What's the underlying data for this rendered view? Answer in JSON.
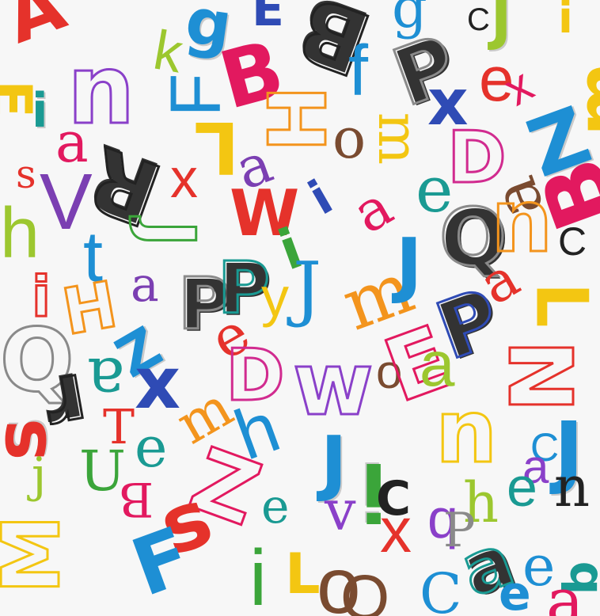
{
  "pattern": {
    "name": "hand-drawn alphabet letters pattern",
    "colors": {
      "red": "#e5322b",
      "pink": "#e2195f",
      "magenta": "#d12b8f",
      "purple": "#7b3fb2",
      "violet": "#8a40c9",
      "blue": "#2f4bb5",
      "sky": "#1e8fd4",
      "teal": "#1a9a93",
      "green": "#3ba53a",
      "lime": "#9cc72f",
      "yellow": "#f3c612",
      "orange": "#f3941d",
      "brown": "#7a4b30",
      "black": "#222222",
      "gray": "#8a8a8a"
    },
    "letters": [
      {
        "text": "A",
        "color": "#e5322b"
      },
      {
        "text": "g",
        "color": "#1e8fd4"
      },
      {
        "text": "E",
        "color": "#2f4bb5"
      },
      {
        "text": "B",
        "color": "#222222"
      },
      {
        "text": "g",
        "color": "#1e8fd4"
      },
      {
        "text": "C",
        "color": "#222222"
      },
      {
        "text": "J",
        "color": "#9cc72f"
      },
      {
        "text": "i",
        "color": "#f3c612"
      },
      {
        "text": "E",
        "color": "#f3c612"
      },
      {
        "text": "i",
        "color": "#1a9a93"
      },
      {
        "text": "n",
        "color": "#8a40c9"
      },
      {
        "text": "k",
        "color": "#9cc72f"
      },
      {
        "text": "B",
        "color": "#e2195f"
      },
      {
        "text": "f",
        "color": "#1e8fd4"
      },
      {
        "text": "P",
        "color": "#8a8a8a"
      },
      {
        "text": "e",
        "color": "#e5322b"
      },
      {
        "text": "m",
        "color": "#f3c612"
      },
      {
        "text": "F",
        "color": "#1e8fd4"
      },
      {
        "text": "H",
        "color": "#f3941d"
      },
      {
        "text": "x",
        "color": "#2f4bb5"
      },
      {
        "text": "x",
        "color": "#e2195f"
      },
      {
        "text": "Z",
        "color": "#1e8fd4"
      },
      {
        "text": "a",
        "color": "#e2195f"
      },
      {
        "text": "L",
        "color": "#f3c612"
      },
      {
        "text": "o",
        "color": "#7a4b30"
      },
      {
        "text": "m",
        "color": "#f3c612"
      },
      {
        "text": "D",
        "color": "#d12b8f"
      },
      {
        "text": "s",
        "color": "#e5322b"
      },
      {
        "text": "V",
        "color": "#7b3fb2"
      },
      {
        "text": "R",
        "color": "#222222"
      },
      {
        "text": "a",
        "color": "#7b3fb2"
      },
      {
        "text": "e",
        "color": "#1a9a93"
      },
      {
        "text": "a",
        "color": "#7a4b30"
      },
      {
        "text": "B",
        "color": "#e2195f"
      },
      {
        "text": "h",
        "color": "#9cc72f"
      },
      {
        "text": "t",
        "color": "#1e8fd4"
      },
      {
        "text": "x",
        "color": "#e5322b"
      },
      {
        "text": "J",
        "color": "#3ba53a"
      },
      {
        "text": "W",
        "color": "#e5322b"
      },
      {
        "text": "i",
        "color": "#2f4bb5"
      },
      {
        "text": "i",
        "color": "#3ba53a"
      },
      {
        "text": "a",
        "color": "#e2195f"
      },
      {
        "text": "Q",
        "color": "#8a8a8a"
      },
      {
        "text": "u",
        "color": "#f3941d"
      },
      {
        "text": "C",
        "color": "#222222"
      },
      {
        "text": "i",
        "color": "#e5322b"
      },
      {
        "text": "H",
        "color": "#f3941d"
      },
      {
        "text": "a",
        "color": "#7b3fb2"
      },
      {
        "text": "P",
        "color": "#8a8a8a"
      },
      {
        "text": "P",
        "color": "#1a9a93"
      },
      {
        "text": "y",
        "color": "#f3c612"
      },
      {
        "text": "J",
        "color": "#1e8fd4"
      },
      {
        "text": "m",
        "color": "#f3941d"
      },
      {
        "text": "J",
        "color": "#1e8fd4"
      },
      {
        "text": "P",
        "color": "#2f4bb5"
      },
      {
        "text": "a",
        "color": "#e5322b"
      },
      {
        "text": "L",
        "color": "#f3c612"
      },
      {
        "text": "Q",
        "color": "#8a8a8a"
      },
      {
        "text": "Z",
        "color": "#1e8fd4"
      },
      {
        "text": "e",
        "color": "#e5322b"
      },
      {
        "text": "D",
        "color": "#d12b8f"
      },
      {
        "text": "w",
        "color": "#8a40c9"
      },
      {
        "text": "o",
        "color": "#7a4b30"
      },
      {
        "text": "E",
        "color": "#e2195f"
      },
      {
        "text": "a",
        "color": "#9cc72f"
      },
      {
        "text": "N",
        "color": "#e5322b"
      },
      {
        "text": "r",
        "color": "#222222"
      },
      {
        "text": "a",
        "color": "#1a9a93"
      },
      {
        "text": "x",
        "color": "#2f4bb5"
      },
      {
        "text": "T",
        "color": "#e5322b"
      },
      {
        "text": "e",
        "color": "#1a9a93"
      },
      {
        "text": "m",
        "color": "#f3941d"
      },
      {
        "text": "h",
        "color": "#1e8fd4"
      },
      {
        "text": "n",
        "color": "#f3c612"
      },
      {
        "text": "C",
        "color": "#1e8fd4"
      },
      {
        "text": "J",
        "color": "#1e8fd4"
      },
      {
        "text": "s",
        "color": "#e5322b"
      },
      {
        "text": "j",
        "color": "#9cc72f"
      },
      {
        "text": "U",
        "color": "#3ba53a"
      },
      {
        "text": "Z",
        "color": "#e2195f"
      },
      {
        "text": "J",
        "color": "#1e8fd4"
      },
      {
        "text": "i",
        "color": "#3ba53a"
      },
      {
        "text": "C",
        "color": "#222222"
      },
      {
        "text": "a",
        "color": "#8a40c9"
      },
      {
        "text": "h",
        "color": "#9cc72f"
      },
      {
        "text": "e",
        "color": "#1a9a93"
      },
      {
        "text": "n",
        "color": "#222222"
      },
      {
        "text": "B",
        "color": "#e2195f"
      },
      {
        "text": "s",
        "color": "#e5322b"
      },
      {
        "text": "e",
        "color": "#1a9a93"
      },
      {
        "text": "v",
        "color": "#8a40c9"
      },
      {
        "text": "x",
        "color": "#e5322b"
      },
      {
        "text": "q",
        "color": "#8a40c9"
      },
      {
        "text": "M",
        "color": "#f3c612"
      },
      {
        "text": "F",
        "color": "#1e8fd4"
      },
      {
        "text": "i",
        "color": "#3ba53a"
      },
      {
        "text": "L",
        "color": "#f3c612"
      },
      {
        "text": "o",
        "color": "#7a4b30"
      },
      {
        "text": "P",
        "color": "#8a8a8a"
      },
      {
        "text": "a",
        "color": "#1a9a93"
      },
      {
        "text": "e",
        "color": "#1e8fd4"
      },
      {
        "text": "C",
        "color": "#1e8fd4"
      },
      {
        "text": "q",
        "color": "#1a9a93"
      },
      {
        "text": "Q",
        "color": "#7a4b30"
      },
      {
        "text": "e",
        "color": "#1e8fd4"
      },
      {
        "text": "a",
        "color": "#e2195f"
      }
    ]
  }
}
